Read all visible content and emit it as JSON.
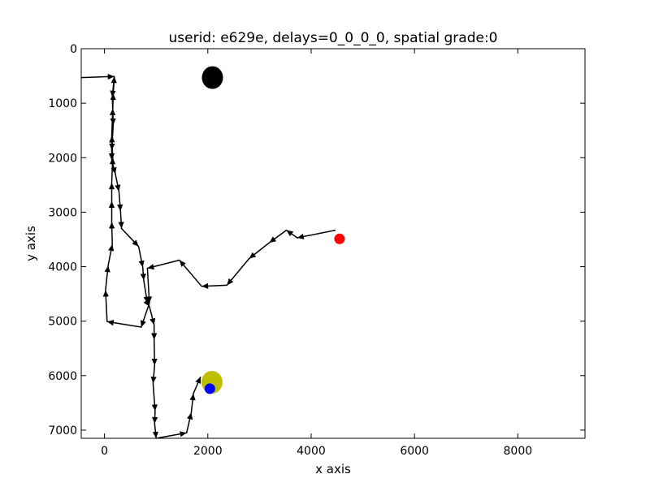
{
  "chart_data": {
    "type": "line",
    "title": "userid: e629e, delays=0_0_0_0, spatial grade:0",
    "xlabel": "x axis",
    "ylabel": "y axis",
    "xlim": [
      -450,
      9300
    ],
    "ylim": [
      7150,
      0
    ],
    "y_inverted": true,
    "grid": false,
    "x_ticks": [
      0,
      2000,
      4000,
      6000,
      8000
    ],
    "x_tick_labels": [
      "0",
      "2000",
      "4000",
      "6000",
      "8000"
    ],
    "y_ticks": [
      0,
      1000,
      2000,
      3000,
      4000,
      5000,
      6000,
      7000
    ],
    "y_tick_labels": [
      "0",
      "1000",
      "2000",
      "3000",
      "4000",
      "5000",
      "6000",
      "7000"
    ],
    "series": [
      {
        "kind": "path",
        "color": "#000000",
        "marker": "arrow",
        "points": [
          [
            -450,
            530
          ],
          [
            190,
            510
          ],
          [
            150,
            890
          ],
          [
            170,
            1400
          ],
          [
            140,
            1860
          ],
          [
            140,
            2040
          ],
          [
            210,
            2300
          ],
          [
            280,
            2620
          ],
          [
            310,
            2980
          ],
          [
            330,
            3300
          ],
          [
            660,
            3630
          ],
          [
            740,
            4010
          ],
          [
            760,
            4250
          ],
          [
            830,
            4670
          ],
          [
            870,
            4730
          ],
          [
            960,
            5070
          ],
          [
            960,
            5340
          ],
          [
            970,
            5810
          ],
          [
            940,
            6140
          ],
          [
            980,
            6650
          ],
          [
            970,
            6880
          ],
          [
            1000,
            7150
          ],
          [
            1590,
            7050
          ],
          [
            1680,
            6680
          ],
          [
            1720,
            6330
          ],
          [
            1860,
            6020
          ]
        ]
      },
      {
        "kind": "path",
        "color": "#000000",
        "marker": "arrow",
        "points": [
          [
            4470,
            3330
          ],
          [
            3730,
            3470
          ],
          [
            3520,
            3330
          ],
          [
            3190,
            3560
          ],
          [
            2800,
            3850
          ],
          [
            2370,
            4340
          ],
          [
            1880,
            4360
          ],
          [
            1450,
            3880
          ],
          [
            830,
            4030
          ],
          [
            870,
            4670
          ],
          [
            710,
            5110
          ],
          [
            50,
            5010
          ],
          [
            20,
            4430
          ],
          [
            70,
            3980
          ],
          [
            150,
            3590
          ],
          [
            140,
            3180
          ],
          [
            140,
            2800
          ],
          [
            140,
            2460
          ],
          [
            160,
            2000
          ],
          [
            140,
            1600
          ],
          [
            160,
            1100
          ],
          [
            170,
            820
          ],
          [
            190,
            510
          ]
        ]
      }
    ],
    "markers": [
      {
        "x": 2090,
        "y": 530,
        "color": "#000000",
        "size": "large"
      },
      {
        "x": 2080,
        "y": 6120,
        "color": "#bfbf00",
        "size": "large"
      },
      {
        "x": 4550,
        "y": 3490,
        "color": "#ff0000",
        "size": "small"
      },
      {
        "x": 2040,
        "y": 6240,
        "color": "#0000ff",
        "size": "small"
      }
    ]
  }
}
